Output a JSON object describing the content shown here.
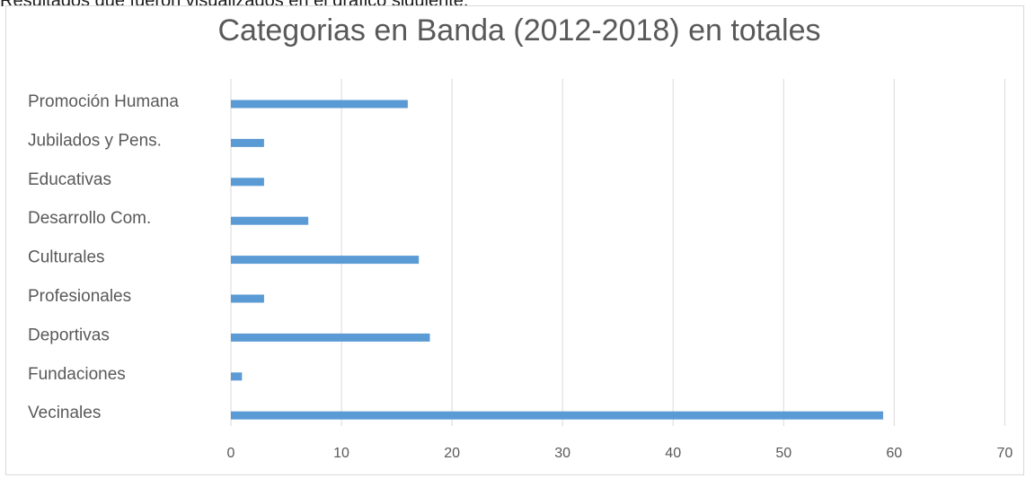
{
  "header_text": "Resultados que fueron visualizados en el gráfico siguiente.",
  "chart_data": {
    "type": "bar",
    "orientation": "horizontal",
    "title": "Categorias en Banda (2012-2018) en totales",
    "categories": [
      "Promoción Humana",
      "Jubilados y Pens.",
      "Educativas",
      "Desarrollo Com.",
      "Culturales",
      "Profesionales",
      "Deportivas",
      "Fundaciones",
      "Vecinales"
    ],
    "values": [
      16,
      3,
      3,
      7,
      17,
      3,
      18,
      1,
      59
    ],
    "xlim": [
      0,
      70
    ],
    "xticks": [
      0,
      10,
      20,
      30,
      40,
      50,
      60,
      70
    ],
    "xlabel": "",
    "ylabel": "",
    "grid": "vertical",
    "bar_color": "#5b9bd5",
    "grid_color": "#d9d9d9"
  }
}
